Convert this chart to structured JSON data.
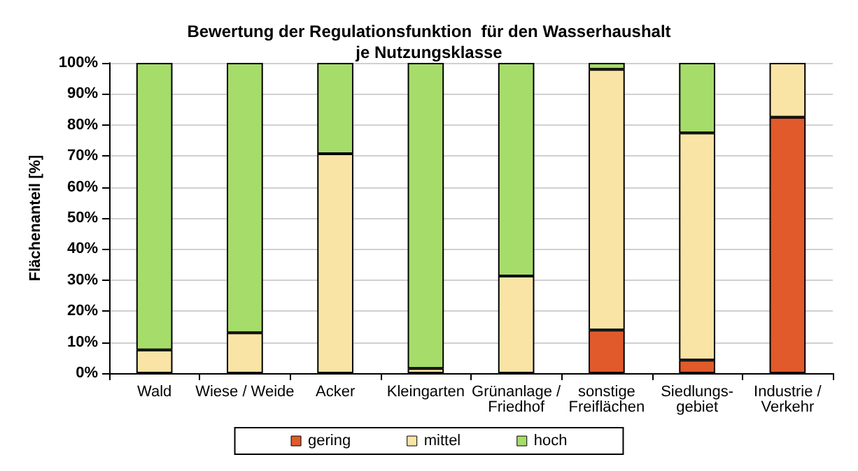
{
  "chart_data": {
    "type": "bar",
    "title": "Bewertung der Regulationsfunktion  für den Wasserhaushalt\nje Nutzungsklasse",
    "ylabel": "Flächenanteil [%]",
    "categories": [
      "Wald",
      "Wiese / Weide",
      "Acker",
      "Kleingarten",
      "Grünanlage /\nFriedhof",
      "sonstige\nFreiflächen",
      "Siedlungs-\ngebiet",
      "Industrie /\nVerkehr"
    ],
    "stacked": true,
    "ylim": [
      0,
      100
    ],
    "yticks": [
      {
        "value": 0,
        "label": "0%"
      },
      {
        "value": 10,
        "label": "10%"
      },
      {
        "value": 20,
        "label": "20%"
      },
      {
        "value": 30,
        "label": "30%"
      },
      {
        "value": 40,
        "label": "40%"
      },
      {
        "value": 50,
        "label": "50%"
      },
      {
        "value": 60,
        "label": "60%"
      },
      {
        "value": 70,
        "label": "70%"
      },
      {
        "value": 80,
        "label": "80%"
      },
      {
        "value": 90,
        "label": "90%"
      },
      {
        "value": 100,
        "label": "100%"
      }
    ],
    "grid": "y",
    "legend": "bottom",
    "series": [
      {
        "name": "gering",
        "color": "#e05a2b",
        "values": [
          null,
          null,
          null,
          null,
          null,
          13.9,
          4.2,
          82.5
        ]
      },
      {
        "name": "mittel",
        "color": "#f9e4a6",
        "values": [
          7.5,
          13,
          70.7,
          1.5,
          31.3,
          84,
          73.2,
          17.5
        ]
      },
      {
        "name": "hoch",
        "color": "#a6dc6a",
        "values": [
          92.5,
          87,
          29.3,
          98.5,
          68.7,
          2.1,
          22.6,
          null
        ]
      }
    ]
  }
}
